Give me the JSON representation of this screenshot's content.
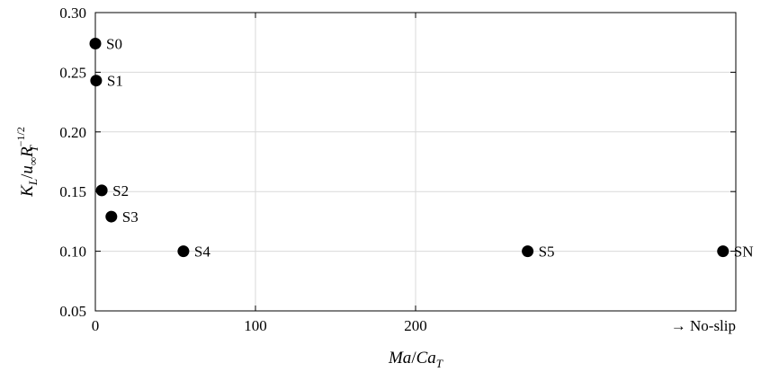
{
  "chart_data": {
    "type": "scatter",
    "xlabel": "Ma/Ca_T",
    "ylabel": "K_L/u_∞R_T^−1/2",
    "xlim": [
      0,
      400
    ],
    "ylim": [
      0.05,
      0.3
    ],
    "xticks": [
      0,
      100,
      200
    ],
    "xtick_labels": [
      "0",
      "100",
      "200"
    ],
    "yticks": [
      0.05,
      0.1,
      0.15,
      0.2,
      0.25,
      0.3
    ],
    "ytick_labels": [
      "0.05",
      "0.10",
      "0.15",
      "0.20",
      "0.25",
      "0.30"
    ],
    "grid": true,
    "points": [
      {
        "label": "S0",
        "x": 0,
        "y": 0.274
      },
      {
        "label": "S1",
        "x": 0.5,
        "y": 0.243
      },
      {
        "label": "S2",
        "x": 4,
        "y": 0.151
      },
      {
        "label": "S3",
        "x": 10,
        "y": 0.129
      },
      {
        "label": "S4",
        "x": 55,
        "y": 0.1
      },
      {
        "label": "S5",
        "x": 270,
        "y": 0.1
      },
      {
        "label": "SN",
        "x": 392,
        "y": 0.1
      }
    ],
    "annotation": "→ No-slip"
  },
  "text": {
    "xlabel_main": "Ma",
    "xlabel_den": "Ca",
    "xlabel_sub": "T",
    "ylabel_K": "K",
    "ylabel_Ksub": "L",
    "ylabel_u": "u",
    "ylabel_usub": "∞",
    "ylabel_R": "R",
    "ylabel_Rsub": "T",
    "ylabel_exp": "−1/2"
  },
  "colors": {
    "marker": "#000000",
    "grid": "#d9d9d9",
    "axis": "#000000"
  }
}
